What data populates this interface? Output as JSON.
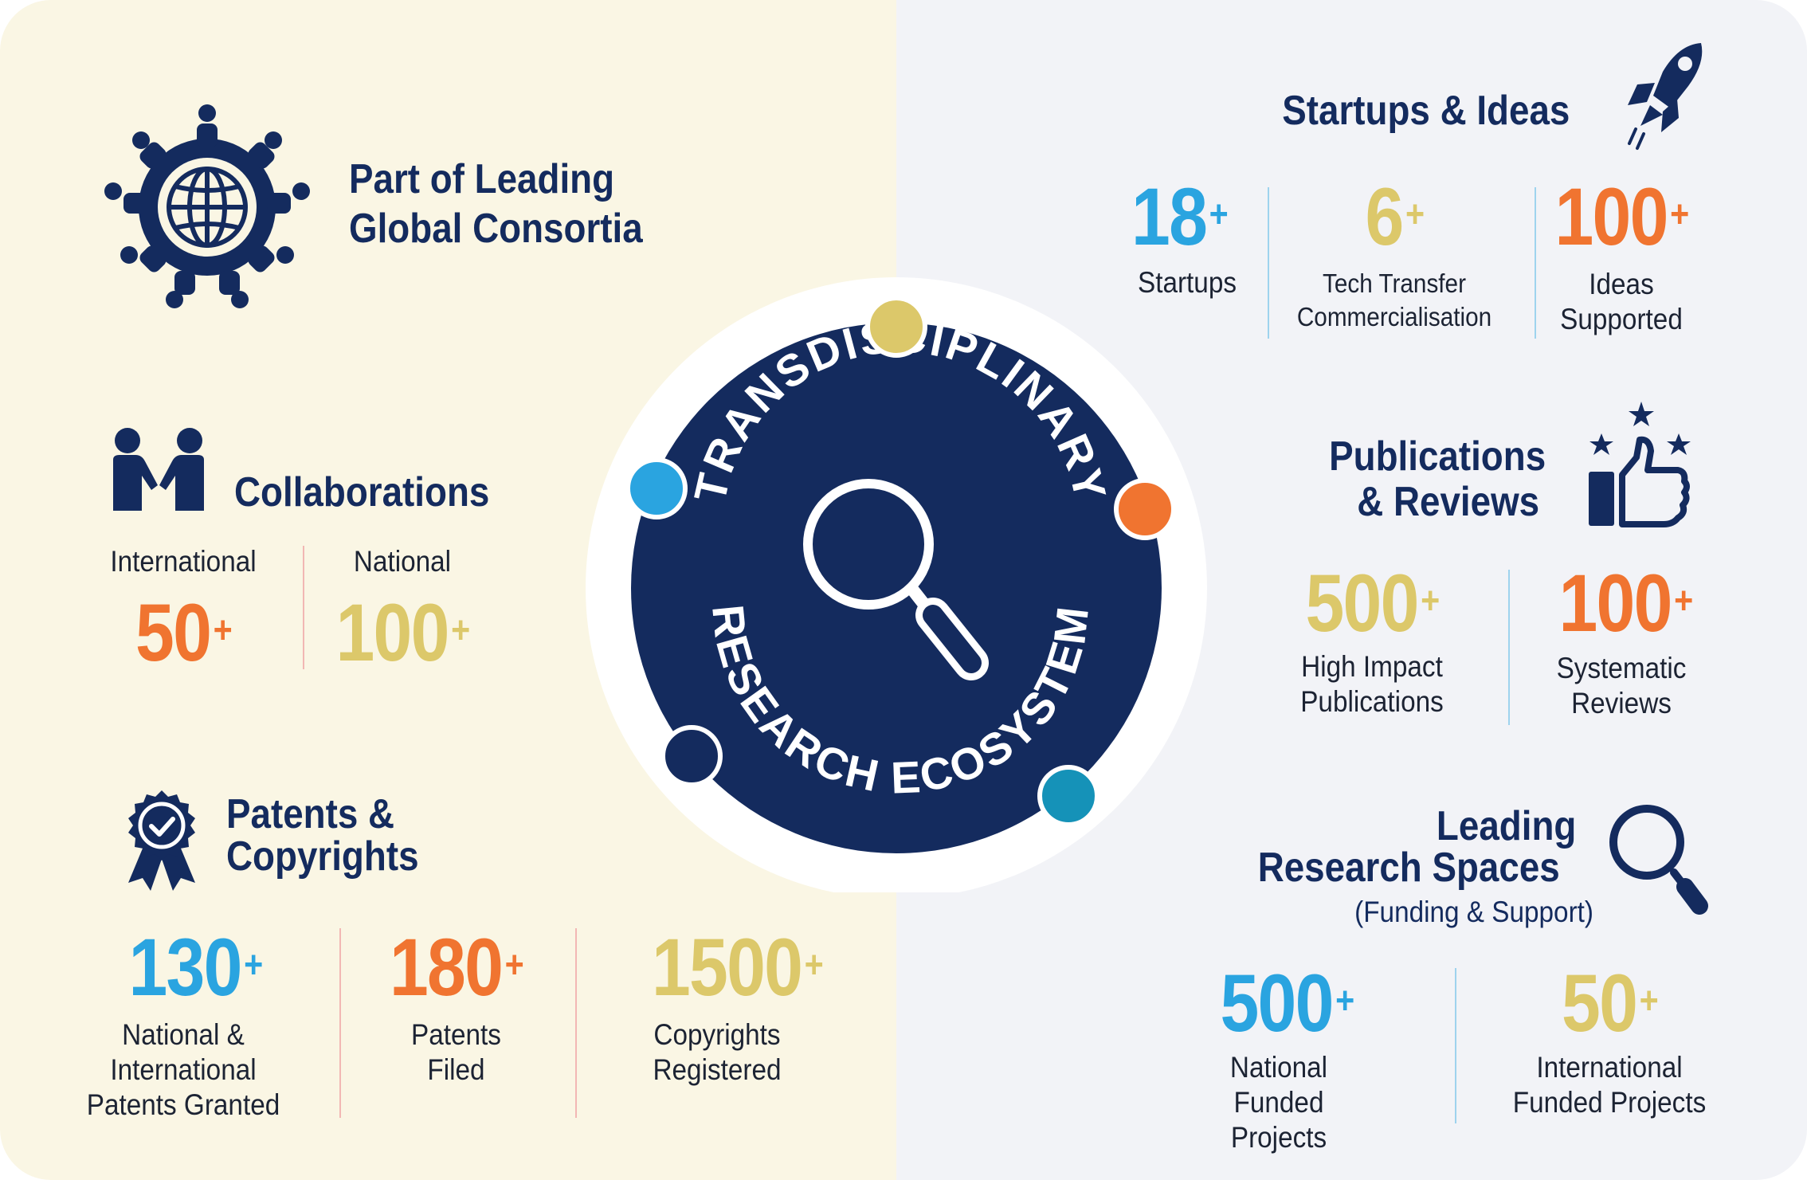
{
  "colors": {
    "navy": "#142b5e",
    "blue": "#2aa4e0",
    "orange": "#f07430",
    "gold": "#dcc86a",
    "teal": "#1592b8",
    "left_bg": "#faf6e4",
    "right_bg": "#f2f3f7"
  },
  "center": {
    "arc_top": "TRANSDISCIPLINARY",
    "arc_bottom": "RESEARCH ECOSYSTEM",
    "icon": "magnifier-icon"
  },
  "consortia": {
    "icon": "global-community-icon",
    "line1": "Part of Leading",
    "line2": "Global Consortia"
  },
  "collaborations": {
    "icon": "handshake-people-icon",
    "title": "Collaborations",
    "stats": [
      {
        "label": "International",
        "value": "50",
        "plus": "+"
      },
      {
        "label": "National",
        "value": "100",
        "plus": "+"
      }
    ]
  },
  "patents": {
    "icon": "award-badge-icon",
    "line1": "Patents &",
    "line2": "Copyrights",
    "stats": [
      {
        "value": "130",
        "plus": "+",
        "label": "National &\nInternational\nPatents Granted"
      },
      {
        "value": "180",
        "plus": "+",
        "label": "Patents\nFiled"
      },
      {
        "value": "1500",
        "plus": "+",
        "label": "Copyrights\nRegistered"
      }
    ]
  },
  "startups": {
    "icon": "rocket-icon",
    "title": "Startups & Ideas",
    "stats": [
      {
        "value": "18",
        "plus": "+",
        "label": "Startups"
      },
      {
        "value": "6",
        "plus": "+",
        "label": "Tech Transfer\nCommercialisation"
      },
      {
        "value": "100",
        "plus": "+",
        "label": "Ideas\nSupported"
      }
    ]
  },
  "publications": {
    "icon": "thumbs-up-stars-icon",
    "line1": "Publications",
    "line2": "& Reviews",
    "stats": [
      {
        "value": "500",
        "plus": "+",
        "label": "High Impact\nPublications"
      },
      {
        "value": "100",
        "plus": "+",
        "label": "Systematic\nReviews"
      }
    ]
  },
  "research": {
    "icon": "search-icon",
    "line1": "Leading",
    "line2": "Research Spaces",
    "sub": "(Funding & Support)",
    "stats": [
      {
        "value": "500",
        "plus": "+",
        "label": "National Funded\nProjects"
      },
      {
        "value": "50",
        "plus": "+",
        "label": "International\nFunded Projects"
      }
    ]
  }
}
